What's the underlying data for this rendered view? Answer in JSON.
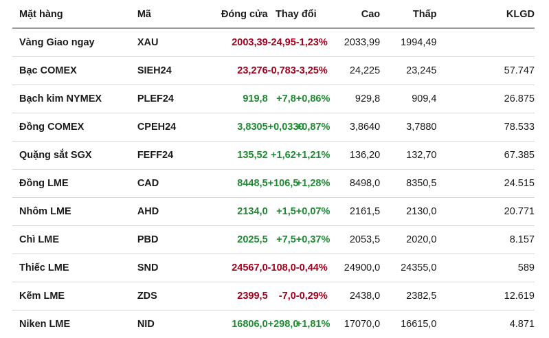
{
  "header": {
    "name": "Mặt hàng",
    "code": "Mã",
    "close": "Đóng cửa",
    "change": "Thay đổi",
    "high": "Cao",
    "low": "Thấp",
    "volume": "KLGD"
  },
  "colors": {
    "up": "#1e8a32",
    "down": "#a3001c"
  },
  "rows": [
    {
      "name": "Vàng Giao ngay",
      "code": "XAU",
      "close": "2003,39",
      "change": "-24,95",
      "pct": "-1,23%",
      "high": "2033,99",
      "low": "1994,49",
      "volume": "",
      "dir": "down"
    },
    {
      "name": "Bạc COMEX",
      "code": "SIEH24",
      "close": "23,276",
      "change": "-0,783",
      "pct": "-3,25%",
      "high": "24,225",
      "low": "23,245",
      "volume": "57.747",
      "dir": "down"
    },
    {
      "name": "Bạch kim NYMEX",
      "code": "PLEF24",
      "close": "919,8",
      "change": "+7,8",
      "pct": "+0,86%",
      "high": "929,8",
      "low": "909,4",
      "volume": "26.875",
      "dir": "up"
    },
    {
      "name": "Đồng COMEX",
      "code": "CPEH24",
      "close": "3,8305",
      "change": "+0,0330",
      "pct": "+0,87%",
      "high": "3,8640",
      "low": "3,7880",
      "volume": "78.533",
      "dir": "up"
    },
    {
      "name": "Quặng sắt SGX",
      "code": "FEFF24",
      "close": "135,52",
      "change": "+1,62",
      "pct": "+1,21%",
      "high": "136,20",
      "low": "132,70",
      "volume": "67.385",
      "dir": "up"
    },
    {
      "name": "Đồng LME",
      "code": "CAD",
      "close": "8448,5",
      "change": "+106,5",
      "pct": "+1,28%",
      "high": "8498,0",
      "low": "8350,5",
      "volume": "24.515",
      "dir": "up"
    },
    {
      "name": "Nhôm LME",
      "code": "AHD",
      "close": "2134,0",
      "change": "+1,5",
      "pct": "+0,07%",
      "high": "2161,5",
      "low": "2130,0",
      "volume": "20.771",
      "dir": "up"
    },
    {
      "name": "Chì LME",
      "code": "PBD",
      "close": "2025,5",
      "change": "+7,5",
      "pct": "+0,37%",
      "high": "2053,5",
      "low": "2020,0",
      "volume": "8.157",
      "dir": "up"
    },
    {
      "name": "Thiếc LME",
      "code": "SND",
      "close": "24567,0",
      "change": "-108,0",
      "pct": "-0,44%",
      "high": "24900,0",
      "low": "24355,0",
      "volume": "589",
      "dir": "down"
    },
    {
      "name": "Kẽm LME",
      "code": "ZDS",
      "close": "2399,5",
      "change": "-7,0",
      "pct": "-0,29%",
      "high": "2438,0",
      "low": "2382,5",
      "volume": "12.619",
      "dir": "down"
    },
    {
      "name": "Niken LME",
      "code": "NID",
      "close": "16806,0",
      "change": "+298,0",
      "pct": "+1,81%",
      "high": "17070,0",
      "low": "16615,0",
      "volume": "4.871",
      "dir": "up"
    }
  ]
}
